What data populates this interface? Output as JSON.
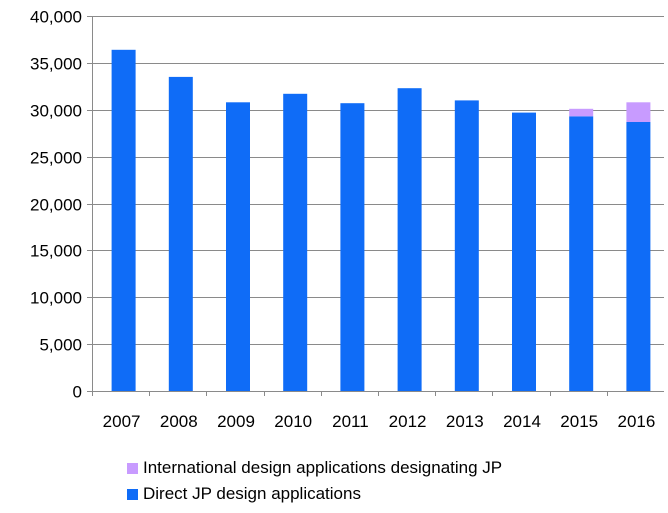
{
  "chart_data": {
    "type": "bar",
    "stacked": true,
    "categories": [
      "2007",
      "2008",
      "2009",
      "2010",
      "2011",
      "2012",
      "2013",
      "2014",
      "2015",
      "2016"
    ],
    "series": [
      {
        "name": "Direct JP design applications",
        "color": "#0f6cf7",
        "values": [
          36400,
          33500,
          30800,
          31700,
          30700,
          32300,
          31000,
          29700,
          29300,
          28700
        ]
      },
      {
        "name": "International design applications designating JP",
        "color": "#c89bff",
        "values": [
          0,
          0,
          0,
          0,
          0,
          0,
          0,
          0,
          800,
          2100
        ]
      }
    ],
    "ylim": [
      0,
      40000
    ],
    "yticks": [
      "0",
      "5,000",
      "10,000",
      "15,000",
      "20,000",
      "25,000",
      "30,000",
      "35,000",
      "40,000"
    ],
    "ytick_values": [
      0,
      5000,
      10000,
      15000,
      20000,
      25000,
      30000,
      35000,
      40000
    ],
    "grid": true,
    "legend_position": "bottom",
    "legend_order": [
      1,
      0
    ]
  }
}
